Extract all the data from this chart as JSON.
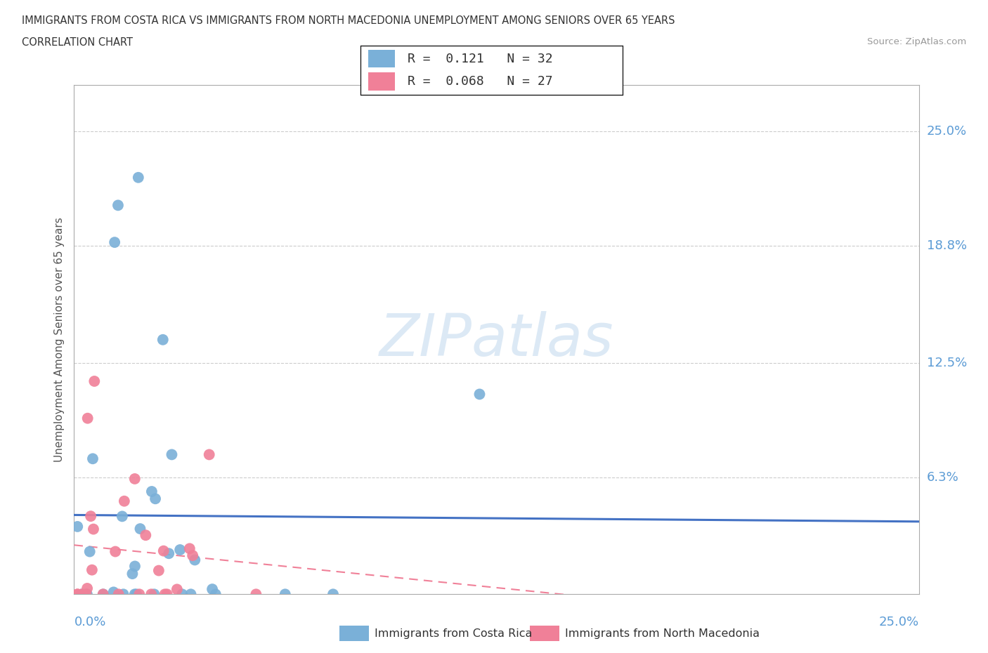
{
  "title_line1": "IMMIGRANTS FROM COSTA RICA VS IMMIGRANTS FROM NORTH MACEDONIA UNEMPLOYMENT AMONG SENIORS OVER 65 YEARS",
  "title_line2": "CORRELATION CHART",
  "source_text": "Source: ZipAtlas.com",
  "ylabel": "Unemployment Among Seniors over 65 years",
  "y_tick_labels": [
    "25.0%",
    "18.8%",
    "12.5%",
    "6.3%"
  ],
  "y_tick_values": [
    0.25,
    0.188,
    0.125,
    0.063
  ],
  "xmin": 0.0,
  "xmax": 0.25,
  "ymin": 0.0,
  "ymax": 0.275,
  "costa_rica_color": "#7ab0d8",
  "north_macedonia_color": "#f08098",
  "costa_rica_R": 0.121,
  "costa_rica_N": 32,
  "north_macedonia_R": 0.068,
  "north_macedonia_N": 27,
  "background_color": "#ffffff",
  "grid_color": "#cccccc",
  "axis_color": "#aaaaaa",
  "title_color": "#333333",
  "tick_label_color": "#5b9bd5",
  "regression_line_blue": "#4472c4",
  "regression_line_pink": "#f08098",
  "watermark_color": "#dce9f5",
  "legend_border_color": "#cccccc",
  "bottom_legend_label1": "Immigrants from Costa Rica",
  "bottom_legend_label2": "Immigrants from North Macedonia"
}
